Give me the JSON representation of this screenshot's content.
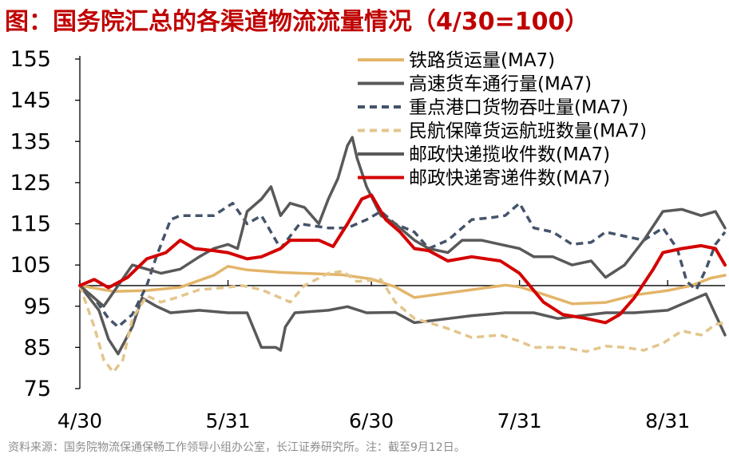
{
  "title": "图：国务院汇总的各渠道物流流量情况（4/30=100）",
  "source": "资料来源：国务院物流保通保畅工作领导小组办公室，长江证券研究所。注：截至9月12日。",
  "chart_data": {
    "type": "line",
    "title": "图：国务院汇总的各渠道物流流量情况（4/30=100）",
    "xlabel": "",
    "ylabel": "",
    "ylim": [
      75,
      155
    ],
    "yticks": [
      "75",
      "85",
      "95",
      "105",
      "115",
      "125",
      "135",
      "145",
      "155"
    ],
    "x_tick_labels": [
      "4/30",
      "5/31",
      "6/30",
      "7/31",
      "8/31"
    ],
    "x_tick_positions": [
      0,
      31,
      61,
      92,
      123
    ],
    "x_range": [
      0,
      135
    ],
    "reference_line": 100,
    "legend_position": "top-right",
    "series": [
      {
        "name": "铁路货运量(MA7)",
        "color": "#e3b56a",
        "dash": "solid",
        "points": [
          [
            0,
            100
          ],
          [
            7,
            98.6
          ],
          [
            14,
            98.8
          ],
          [
            21,
            99.6
          ],
          [
            28,
            102.5
          ],
          [
            31,
            104.7
          ],
          [
            35,
            103.8
          ],
          [
            42,
            103.2
          ],
          [
            49,
            102.9
          ],
          [
            55,
            102.6
          ],
          [
            61,
            101.6
          ],
          [
            66,
            99.7
          ],
          [
            70,
            97.1
          ],
          [
            75,
            97.9
          ],
          [
            82,
            99
          ],
          [
            89,
            100.1
          ],
          [
            92,
            99.7
          ],
          [
            97,
            97.9
          ],
          [
            103,
            95.6
          ],
          [
            110,
            95.9
          ],
          [
            116,
            97.7
          ],
          [
            123,
            98.8
          ],
          [
            128,
            100
          ],
          [
            132,
            101.8
          ],
          [
            135,
            102.5
          ]
        ]
      },
      {
        "name": "高速货车通行量(MA7)",
        "color": "#595959",
        "dash": "solid",
        "points": [
          [
            0,
            100
          ],
          [
            4,
            94
          ],
          [
            6,
            87
          ],
          [
            8,
            83.4
          ],
          [
            11,
            90
          ],
          [
            13,
            97
          ],
          [
            16,
            95
          ],
          [
            19,
            93.4
          ],
          [
            25,
            94
          ],
          [
            31,
            93.4
          ],
          [
            35,
            93.4
          ],
          [
            38,
            85
          ],
          [
            41,
            85
          ],
          [
            42,
            84.3
          ],
          [
            43,
            90
          ],
          [
            45,
            93.4
          ],
          [
            52,
            94
          ],
          [
            56,
            94.9
          ],
          [
            60,
            93.4
          ],
          [
            66,
            93.5
          ],
          [
            70,
            91
          ],
          [
            75,
            91.7
          ],
          [
            82,
            92.7
          ],
          [
            89,
            93.4
          ],
          [
            95,
            93.4
          ],
          [
            100,
            92
          ],
          [
            105,
            92.7
          ],
          [
            110,
            93.4
          ],
          [
            116,
            93.4
          ],
          [
            123,
            94
          ],
          [
            127,
            96
          ],
          [
            131,
            98
          ],
          [
            133,
            93
          ],
          [
            135,
            88
          ]
        ]
      },
      {
        "name": "重点港口货物吞吐量(MA7)",
        "color": "#44546a",
        "dash": "dashed",
        "points": [
          [
            0,
            100
          ],
          [
            3,
            97
          ],
          [
            6,
            92
          ],
          [
            8,
            90
          ],
          [
            11,
            93
          ],
          [
            14,
            100
          ],
          [
            16,
            107
          ],
          [
            19,
            116
          ],
          [
            21,
            117
          ],
          [
            28,
            117
          ],
          [
            32,
            120
          ],
          [
            35,
            115
          ],
          [
            38,
            117
          ],
          [
            42,
            109
          ],
          [
            46,
            115
          ],
          [
            52,
            114
          ],
          [
            56,
            114
          ],
          [
            60,
            116
          ],
          [
            63,
            118
          ],
          [
            66,
            115
          ],
          [
            70,
            113
          ],
          [
            73,
            109
          ],
          [
            77,
            111
          ],
          [
            82,
            116
          ],
          [
            86,
            116.5
          ],
          [
            89,
            117
          ],
          [
            92,
            120
          ],
          [
            95,
            114
          ],
          [
            99,
            113
          ],
          [
            103,
            110
          ],
          [
            107,
            110.5
          ],
          [
            110,
            113
          ],
          [
            114,
            112
          ],
          [
            118,
            111
          ],
          [
            122,
            114
          ],
          [
            125,
            109
          ],
          [
            127,
            101
          ],
          [
            129,
            99
          ],
          [
            131,
            104
          ],
          [
            133,
            110
          ],
          [
            135,
            113
          ]
        ]
      },
      {
        "name": "民航保障货运航班数量(MA7)",
        "color": "#e3c58c",
        "dash": "dashed",
        "points": [
          [
            0,
            100
          ],
          [
            3,
            90
          ],
          [
            5,
            82
          ],
          [
            7,
            79
          ],
          [
            9,
            82
          ],
          [
            11,
            92
          ],
          [
            14,
            97.5
          ],
          [
            17,
            96
          ],
          [
            20,
            97
          ],
          [
            25,
            99
          ],
          [
            31,
            99.6
          ],
          [
            34,
            100
          ],
          [
            38,
            99
          ],
          [
            42,
            97
          ],
          [
            44,
            96
          ],
          [
            47,
            100
          ],
          [
            52,
            103
          ],
          [
            55,
            103.5
          ],
          [
            58,
            101
          ],
          [
            63,
            101.5
          ],
          [
            66,
            96
          ],
          [
            70,
            92
          ],
          [
            76,
            90
          ],
          [
            82,
            87.4
          ],
          [
            88,
            88
          ],
          [
            92,
            86.5
          ],
          [
            95,
            85
          ],
          [
            101,
            85
          ],
          [
            106,
            84
          ],
          [
            110,
            85.3
          ],
          [
            114,
            85
          ],
          [
            118,
            84.3
          ],
          [
            122,
            86
          ],
          [
            126,
            89
          ],
          [
            130,
            88
          ],
          [
            133,
            90.6
          ],
          [
            135,
            91
          ]
        ]
      },
      {
        "name": "邮政快递揽收件数(MA7)",
        "color": "#595959",
        "dash": "solid",
        "points": [
          [
            0,
            100
          ],
          [
            3,
            97
          ],
          [
            5,
            95
          ],
          [
            8,
            100
          ],
          [
            11,
            105
          ],
          [
            14,
            104
          ],
          [
            17,
            103
          ],
          [
            21,
            104
          ],
          [
            25,
            107
          ],
          [
            28,
            109
          ],
          [
            31,
            110
          ],
          [
            33,
            109
          ],
          [
            35,
            118
          ],
          [
            38,
            121
          ],
          [
            40,
            124
          ],
          [
            42,
            117
          ],
          [
            44,
            120
          ],
          [
            47,
            119
          ],
          [
            50,
            115
          ],
          [
            52,
            121
          ],
          [
            54,
            126
          ],
          [
            56,
            134
          ],
          [
            57,
            136
          ],
          [
            58,
            131
          ],
          [
            60,
            124
          ],
          [
            63,
            117
          ],
          [
            66,
            115
          ],
          [
            70,
            111
          ],
          [
            73,
            109
          ],
          [
            77,
            108
          ],
          [
            80,
            111
          ],
          [
            84,
            111
          ],
          [
            88,
            110
          ],
          [
            92,
            109
          ],
          [
            95,
            107
          ],
          [
            99,
            107
          ],
          [
            103,
            105
          ],
          [
            107,
            106
          ],
          [
            110,
            102
          ],
          [
            114,
            105
          ],
          [
            118,
            111
          ],
          [
            122,
            118
          ],
          [
            126,
            118.5
          ],
          [
            130,
            117
          ],
          [
            133,
            118
          ],
          [
            135,
            114
          ]
        ]
      },
      {
        "name": "邮政快递寄递件数(MA7)",
        "color": "#d40000",
        "dash": "solid",
        "points": [
          [
            0,
            100
          ],
          [
            3,
            101.5
          ],
          [
            6,
            99.5
          ],
          [
            10,
            102
          ],
          [
            14,
            106.5
          ],
          [
            18,
            108
          ],
          [
            21,
            111
          ],
          [
            24,
            109
          ],
          [
            28,
            108.5
          ],
          [
            31,
            108
          ],
          [
            35,
            106.5
          ],
          [
            38,
            107
          ],
          [
            42,
            109
          ],
          [
            44,
            111
          ],
          [
            50,
            111
          ],
          [
            53,
            109.5
          ],
          [
            56,
            115
          ],
          [
            59,
            121
          ],
          [
            61,
            122
          ],
          [
            64,
            116
          ],
          [
            67,
            113
          ],
          [
            70,
            109
          ],
          [
            73,
            108.5
          ],
          [
            77,
            106
          ],
          [
            82,
            107
          ],
          [
            88,
            106
          ],
          [
            92,
            103
          ],
          [
            97,
            96
          ],
          [
            101,
            93
          ],
          [
            106,
            92
          ],
          [
            110,
            91
          ],
          [
            113,
            93
          ],
          [
            116,
            97
          ],
          [
            120,
            104
          ],
          [
            122,
            108
          ],
          [
            126,
            109
          ],
          [
            130,
            109.7
          ],
          [
            133,
            109
          ],
          [
            135,
            105
          ]
        ]
      }
    ]
  }
}
